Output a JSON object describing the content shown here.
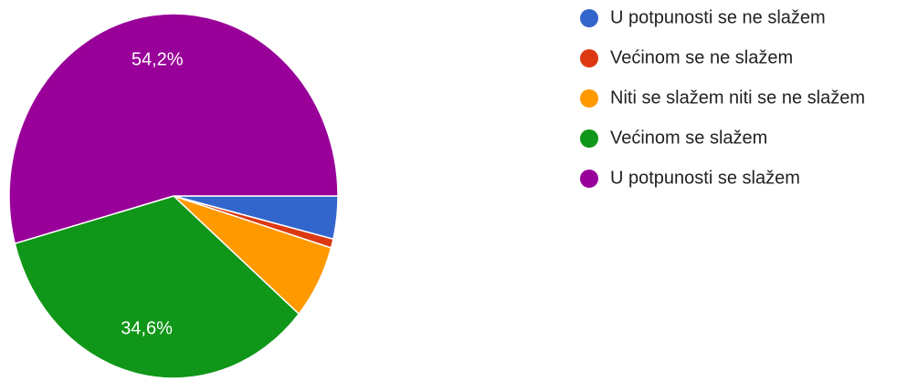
{
  "chart_data": {
    "type": "pie",
    "categories": [
      "U potpunosti se ne slažem",
      "Većinom se ne slažem",
      "Niti se slažem niti se ne slažem",
      "Većinom se slažem",
      "U potpunosti se slažem"
    ],
    "values": [
      3.8,
      0.8,
      6.6,
      34.6,
      54.2
    ],
    "value_labels": [
      null,
      null,
      null,
      "34,6%",
      "54,2%"
    ],
    "colors": [
      "#3366cc",
      "#dc3912",
      "#ff9900",
      "#109618",
      "#990099"
    ]
  }
}
